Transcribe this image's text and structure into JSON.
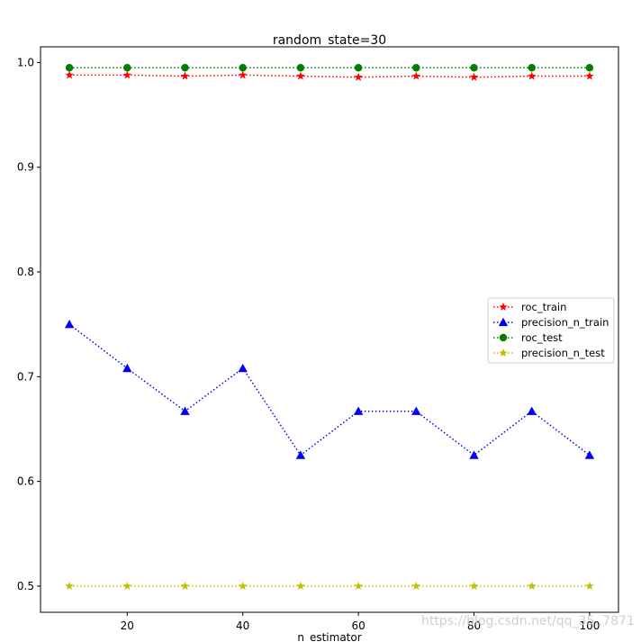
{
  "chart_data": {
    "type": "line",
    "title": "random_state=30",
    "xlabel": "n_estimator",
    "ylabel": "",
    "x": [
      10,
      20,
      30,
      40,
      50,
      60,
      70,
      80,
      90,
      100
    ],
    "xlim": [
      5,
      105
    ],
    "ylim": [
      0.475,
      1.015
    ],
    "xticks": [
      20,
      40,
      60,
      80,
      100
    ],
    "xtick_labels": [
      "20",
      "40",
      "60",
      "80",
      "100"
    ],
    "yticks": [
      0.5,
      0.6,
      0.7,
      0.8,
      0.9,
      1.0
    ],
    "ytick_labels": [
      "0.5",
      "0.6",
      "0.7",
      "0.8",
      "0.9",
      "1.0"
    ],
    "grid": false,
    "legend_position": "center-right",
    "series": [
      {
        "name": "roc_train",
        "color": "#ff0000",
        "marker": "star",
        "linestyle": "dotted",
        "values": [
          0.988,
          0.988,
          0.987,
          0.988,
          0.987,
          0.986,
          0.987,
          0.986,
          0.987,
          0.987
        ]
      },
      {
        "name": "precision_n_train",
        "color": "#0000ff",
        "marker": "triangle",
        "linestyle": "dotted",
        "values": [
          0.75,
          0.708,
          0.667,
          0.708,
          0.625,
          0.667,
          0.667,
          0.625,
          0.667,
          0.625
        ]
      },
      {
        "name": "roc_test",
        "color": "#008000",
        "marker": "circle",
        "linestyle": "dotted",
        "values": [
          0.995,
          0.995,
          0.995,
          0.995,
          0.995,
          0.995,
          0.995,
          0.995,
          0.995,
          0.995
        ]
      },
      {
        "name": "precision_n_test",
        "color": "#bfbf00",
        "marker": "star",
        "linestyle": "dotted",
        "values": [
          0.5,
          0.5,
          0.5,
          0.5,
          0.5,
          0.5,
          0.5,
          0.5,
          0.5,
          0.5
        ]
      }
    ]
  },
  "watermark": "https://blog.csdn.net/qq_35..7871"
}
